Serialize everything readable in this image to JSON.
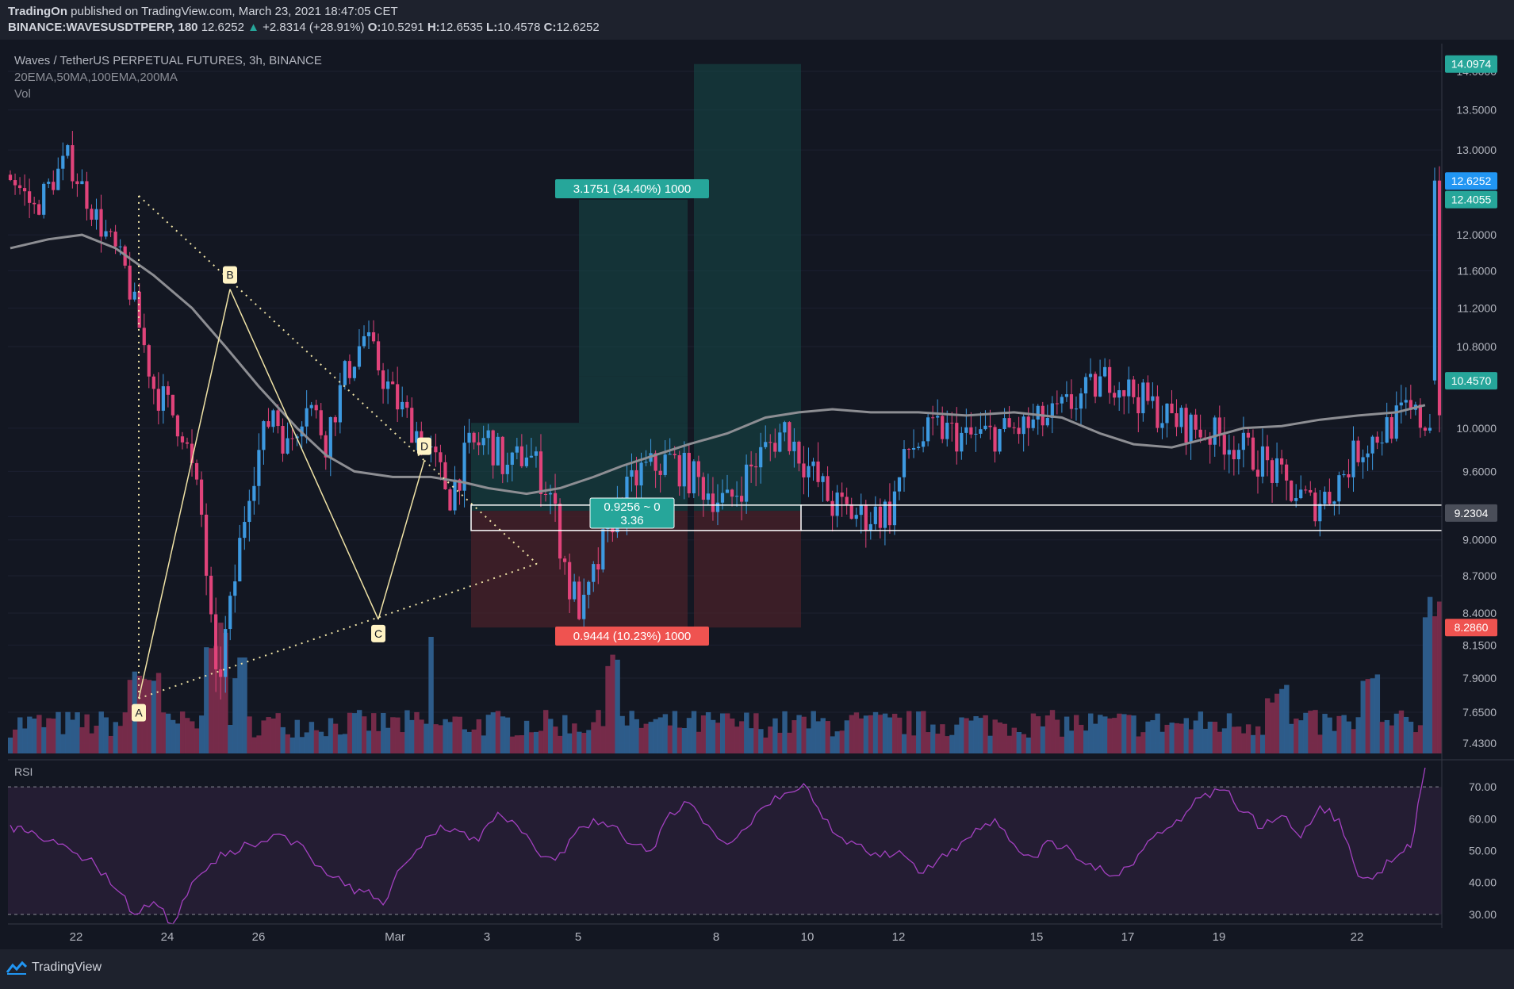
{
  "header": {
    "publisher": "TradingOn",
    "published_text": "published on TradingView.com, March 23, 2021 18:47:05 CET",
    "symbol": "BINANCE:WAVESUSDTPERP, 180",
    "last": "12.6252",
    "change_arrow": "▲",
    "change": "+2.8314 (+28.91%)",
    "o_label": "O:",
    "o_value": "10.5291",
    "h_label": "H:",
    "h_value": "12.6535",
    "l_label": "L:",
    "l_value": "10.4578",
    "c_label": "C:",
    "c_value": "12.6252"
  },
  "legend": {
    "title": "Waves / TetherUS PERPETUAL FUTURES, 3h, BINANCE",
    "indicators": "20EMA,50MA,100EMA,200MA",
    "volume": "Vol",
    "rsi": "RSI"
  },
  "footer": {
    "brand": "TradingView",
    "logo_icon": "tradingview-logo-icon"
  },
  "colors": {
    "background": "#131722",
    "up": "#3d99e0",
    "down": "#e0437a",
    "ma": "#8d8e93",
    "profit_zone": "#164a48",
    "loss_zone": "#4a2129",
    "pattern": "#f0e3a6",
    "rsi_line": "#a340c0",
    "rsi_band": "#241d33"
  },
  "chart_data": [
    {
      "type": "candlestick",
      "price_axis": {
        "scale": "log",
        "ticks": [
          14.0,
          13.5,
          13.0,
          12.0,
          11.6,
          11.2,
          10.8,
          10.0,
          9.6,
          9.2,
          9.0,
          8.7,
          8.4,
          8.15,
          7.9,
          7.65,
          7.43
        ]
      },
      "x_tick_labels": [
        "22",
        "24",
        "26",
        "Mar",
        "3",
        "5",
        "8",
        "10",
        "12",
        "15",
        "17",
        "19",
        "22"
      ],
      "price_badges": [
        {
          "text": "14.0974",
          "price": 14.0974,
          "color": "#26a69a"
        },
        {
          "text": "12.6252",
          "price": 12.6252,
          "color": "#2196f3"
        },
        {
          "text": "12.4055",
          "price": 12.4055,
          "color": "#26a69a"
        },
        {
          "text": "10.4570",
          "price": 10.457,
          "color": "#26a69a"
        },
        {
          "text": "9.2304",
          "price": 9.2304,
          "color": "#4a4e59"
        },
        {
          "text": "8.2860",
          "price": 8.286,
          "color": "#ef5350"
        }
      ],
      "position_labels": {
        "profit": "3.1751 (34.40%) 1000",
        "loss": "0.9444 (10.23%) 1000",
        "range": "0.9256 ~ 0",
        "ratio": "3.36"
      },
      "pattern_points": [
        {
          "label": "A",
          "price": 7.75
        },
        {
          "label": "B",
          "price": 11.4
        },
        {
          "label": "C",
          "price": 8.35
        },
        {
          "label": "D",
          "price": 9.7
        }
      ],
      "moving_average": [
        [
          0,
          11.85
        ],
        [
          8,
          11.95
        ],
        [
          15,
          12.0
        ],
        [
          22,
          11.85
        ],
        [
          30,
          11.55
        ],
        [
          38,
          11.2
        ],
        [
          45,
          10.8
        ],
        [
          52,
          10.4
        ],
        [
          60,
          10.0
        ],
        [
          66,
          9.75
        ],
        [
          72,
          9.6
        ],
        [
          80,
          9.55
        ],
        [
          88,
          9.55
        ],
        [
          95,
          9.5
        ],
        [
          100,
          9.45
        ],
        [
          108,
          9.4
        ],
        [
          115,
          9.45
        ],
        [
          122,
          9.55
        ],
        [
          128,
          9.65
        ],
        [
          135,
          9.75
        ],
        [
          142,
          9.85
        ],
        [
          150,
          9.95
        ],
        [
          158,
          10.1
        ],
        [
          165,
          10.15
        ],
        [
          172,
          10.18
        ],
        [
          180,
          10.15
        ],
        [
          190,
          10.15
        ],
        [
          200,
          10.12
        ],
        [
          210,
          10.15
        ],
        [
          220,
          10.1
        ],
        [
          228,
          9.95
        ],
        [
          235,
          9.85
        ],
        [
          243,
          9.82
        ],
        [
          250,
          9.9
        ],
        [
          258,
          10.0
        ],
        [
          266,
          10.02
        ],
        [
          274,
          10.08
        ],
        [
          282,
          10.12
        ],
        [
          290,
          10.15
        ],
        [
          296,
          10.22
        ]
      ]
    },
    {
      "type": "line",
      "title": "RSI",
      "y_ticks": [
        70.0,
        60.0,
        50.0,
        40.0,
        30.0
      ],
      "ylim": [
        27,
        76
      ],
      "bands": [
        30,
        70
      ],
      "x": [
        0,
        3,
        6,
        10,
        14,
        18,
        22,
        26,
        30,
        34,
        38,
        42,
        46,
        50,
        55,
        60,
        65,
        70,
        74,
        78,
        82,
        86,
        90,
        94,
        98,
        102,
        106,
        110,
        114,
        118,
        122,
        126,
        130,
        134,
        138,
        142,
        146,
        150,
        154,
        158,
        162,
        166,
        170,
        174,
        178,
        182,
        186,
        190,
        194,
        198,
        202,
        206,
        210,
        214,
        218,
        222,
        226,
        230,
        234,
        238,
        242,
        246,
        250,
        254,
        258,
        262,
        266,
        270,
        274,
        278,
        282,
        286,
        290,
        293,
        296
      ],
      "values": [
        58,
        56,
        54,
        52,
        49,
        45,
        38,
        30,
        34,
        27,
        40,
        46,
        50,
        52,
        55,
        53,
        45,
        39,
        37,
        33,
        45,
        51,
        58,
        56,
        53,
        62,
        58,
        50,
        47,
        55,
        60,
        58,
        52,
        50,
        62,
        65,
        58,
        52,
        57,
        64,
        68,
        71,
        60,
        54,
        52,
        48,
        50,
        43,
        47,
        50,
        57,
        60,
        52,
        48,
        53,
        50,
        46,
        42,
        45,
        53,
        57,
        62,
        68,
        69,
        62,
        57,
        61,
        54,
        64,
        60,
        42,
        43,
        48,
        51,
        76
      ]
    },
    {
      "type": "bar",
      "title": "Vol",
      "note": "volume histogram, relative heights only (no volume axis shown)"
    }
  ]
}
